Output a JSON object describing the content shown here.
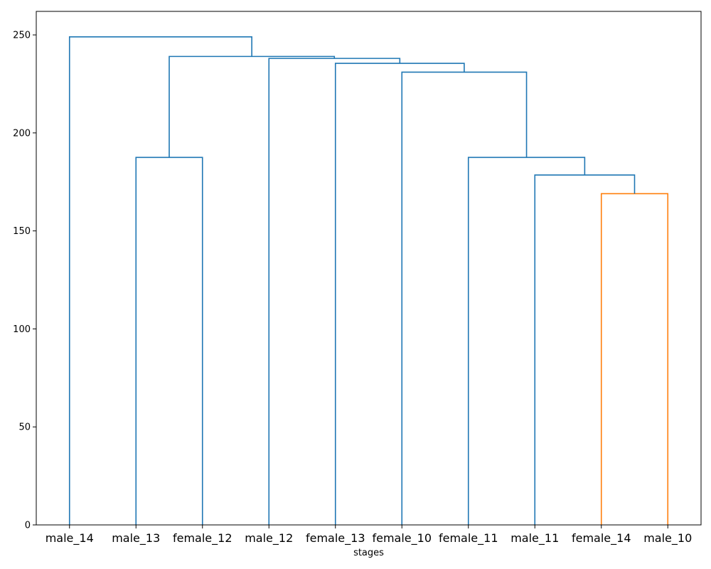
{
  "chart_data": {
    "type": "dendrogram",
    "title": "",
    "xlabel": "stages",
    "ylabel": "",
    "ylim": [
      0,
      262
    ],
    "yticks": [
      0,
      50,
      100,
      150,
      200,
      250
    ],
    "grid": false,
    "leaves": [
      "male_14",
      "male_13",
      "female_12",
      "male_12",
      "female_13",
      "female_10",
      "female_11",
      "male_11",
      "female_14",
      "male_10"
    ],
    "colors": {
      "above_threshold": "#1f77b4",
      "cluster_1": "#ff7f0e"
    },
    "links": [
      {
        "left": "female_14",
        "right": "male_10",
        "height": 169,
        "color": "cluster_1"
      },
      {
        "left": "male_11",
        "right": "[female_14, male_10]",
        "height": 178.5,
        "color": "above_threshold"
      },
      {
        "left": "female_11",
        "right": "[male_11, female_14, male_10]",
        "height": 187.5,
        "color": "above_threshold"
      },
      {
        "left": "male_13",
        "right": "female_12",
        "height": 187.5,
        "color": "above_threshold"
      },
      {
        "left": "female_10",
        "right": "[female_11, male_11, female_14, male_10]",
        "height": 231,
        "color": "above_threshold"
      },
      {
        "left": "female_13",
        "right": "[female_10, female_11, male_11, female_14, male_10]",
        "height": 235.5,
        "color": "above_threshold"
      },
      {
        "left": "male_12",
        "right": "[female_13, female_10, female_11, male_11, female_14, male_10]",
        "height": 238,
        "color": "above_threshold"
      },
      {
        "left": "[male_13, female_12]",
        "right": "[male_12, female_13, female_10, female_11, male_11, female_14, male_10]",
        "height": 239,
        "color": "above_threshold"
      },
      {
        "left": "male_14",
        "right": "[male_13, female_12, male_12, female_13, female_10, female_11, male_11, female_14, male_10]",
        "height": 249,
        "color": "above_threshold"
      }
    ]
  }
}
